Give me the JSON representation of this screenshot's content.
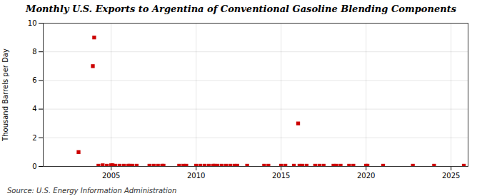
{
  "chart_data": {
    "type": "scatter",
    "title": "Monthly U.S. Exports to Argentina of Conventional Gasoline Blending Components",
    "ylabel": "Thousand Barrels per Day",
    "annotation": "Source: U.S. Energy Information Administration",
    "x": [
      2003.08,
      2003.92,
      2004.0,
      2004.25,
      2004.5,
      2004.75,
      2005.0,
      2005.08,
      2005.25,
      2005.5,
      2005.75,
      2006.0,
      2006.08,
      2006.25,
      2006.5,
      2007.25,
      2007.5,
      2007.75,
      2008.0,
      2008.08,
      2009.0,
      2009.25,
      2009.42,
      2010.0,
      2010.25,
      2010.5,
      2010.75,
      2011.0,
      2011.08,
      2011.25,
      2011.5,
      2011.75,
      2012.0,
      2012.25,
      2012.42,
      2013.0,
      2014.0,
      2014.25,
      2015.0,
      2015.25,
      2015.75,
      2016.0,
      2016.08,
      2016.25,
      2016.5,
      2017.0,
      2017.25,
      2017.5,
      2018.08,
      2018.25,
      2018.5,
      2019.0,
      2019.25,
      2020.0,
      2020.08,
      2021.0,
      2022.75,
      2024.0,
      2025.75
    ],
    "values": [
      1.0,
      7.0,
      9.0,
      0.05,
      0.08,
      0.05,
      0.08,
      0.08,
      0.05,
      0.05,
      0.05,
      0.05,
      0.05,
      0.05,
      0.05,
      0.05,
      0.05,
      0.05,
      0.05,
      0.05,
      0.05,
      0.05,
      0.05,
      0.05,
      0.05,
      0.05,
      0.05,
      0.05,
      0.05,
      0.05,
      0.05,
      0.05,
      0.05,
      0.05,
      0.05,
      0.05,
      0.05,
      0.05,
      0.05,
      0.05,
      0.05,
      3.0,
      0.05,
      0.05,
      0.05,
      0.05,
      0.05,
      0.05,
      0.05,
      0.05,
      0.05,
      0.05,
      0.05,
      0.05,
      0.05,
      0.05,
      0.05,
      0.05,
      0.05
    ],
    "color": "#cc0000",
    "marker": "square",
    "xlim": [
      2001,
      2026
    ],
    "ylim": [
      0,
      10
    ],
    "xticks": [
      2005,
      2010,
      2015,
      2020,
      2025
    ],
    "yticks": [
      0,
      2,
      4,
      6,
      8,
      10
    ],
    "grid": true
  }
}
